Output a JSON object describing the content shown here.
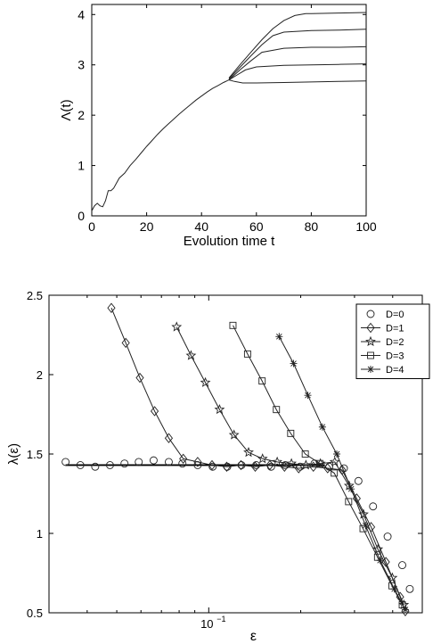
{
  "chart_data": [
    {
      "type": "line",
      "title": "",
      "xlabel": "Evolution time t",
      "ylabel": "Λ(t)",
      "xlim": [
        0,
        100
      ],
      "ylim": [
        0,
        4.2
      ],
      "xticks": [
        "0",
        "20",
        "40",
        "60",
        "80",
        "100"
      ],
      "yticks": [
        "0",
        "1",
        "2",
        "3",
        "4"
      ],
      "grid": false,
      "shared_x": [
        0,
        1,
        2,
        3,
        4,
        5,
        6,
        7,
        8,
        10,
        12,
        14,
        16,
        18,
        20,
        22,
        24,
        26,
        28,
        30,
        32,
        34,
        36,
        38,
        40,
        42,
        44,
        46,
        48,
        50
      ],
      "shared_y": [
        0.1,
        0.2,
        0.25,
        0.2,
        0.18,
        0.3,
        0.5,
        0.5,
        0.55,
        0.75,
        0.85,
        1.0,
        1.12,
        1.25,
        1.38,
        1.5,
        1.62,
        1.73,
        1.83,
        1.93,
        2.03,
        2.12,
        2.21,
        2.3,
        2.38,
        2.46,
        2.53,
        2.59,
        2.65,
        2.7
      ],
      "series": [
        {
          "x": [
            50,
            52,
            55,
            60,
            70,
            80,
            90,
            100
          ],
          "values": [
            2.7,
            2.67,
            2.64,
            2.64,
            2.65,
            2.66,
            2.67,
            2.68
          ]
        },
        {
          "x": [
            50,
            53,
            56,
            60,
            70,
            80,
            90,
            100
          ],
          "values": [
            2.7,
            2.8,
            2.9,
            2.96,
            2.99,
            3.0,
            3.01,
            3.02
          ]
        },
        {
          "x": [
            50,
            54,
            58,
            62,
            70,
            80,
            90,
            100
          ],
          "values": [
            2.7,
            2.9,
            3.08,
            3.25,
            3.33,
            3.35,
            3.35,
            3.36
          ]
        },
        {
          "x": [
            50,
            54,
            58,
            62,
            66,
            70,
            80,
            90,
            100
          ],
          "values": [
            2.72,
            2.95,
            3.18,
            3.4,
            3.58,
            3.65,
            3.68,
            3.69,
            3.71
          ]
        },
        {
          "x": [
            50,
            54,
            58,
            62,
            66,
            70,
            74,
            78,
            80,
            90,
            100
          ],
          "values": [
            2.74,
            3.0,
            3.25,
            3.5,
            3.72,
            3.88,
            3.98,
            4.02,
            4.02,
            4.03,
            4.04
          ]
        }
      ]
    },
    {
      "type": "scatter",
      "title": "",
      "xlabel": "ε",
      "ylabel": "λ(ε)",
      "xscale": "log",
      "xlim": [
        0.03,
        0.5
      ],
      "ylim": [
        0.5,
        2.5
      ],
      "xticks": [
        "10"
      ],
      "xtick_exponent": "−1",
      "yticks": [
        "0.5",
        "1",
        "1.5",
        "2",
        "2.5"
      ],
      "legend_position": "top-right",
      "grid": false,
      "plateau_line": {
        "x": [
          0.034,
          0.24
        ],
        "values": [
          1.43,
          1.43
        ]
      },
      "series": [
        {
          "name": "D=0",
          "marker": "circle",
          "connected": false,
          "x": [
            0.034,
            0.038,
            0.0425,
            0.0475,
            0.053,
            0.059,
            0.066,
            0.074,
            0.082,
            0.092,
            0.103,
            0.115,
            0.128,
            0.143,
            0.16,
            0.178,
            0.199,
            0.222,
            0.248,
            0.277,
            0.309,
            0.345,
            0.385,
            0.43,
            0.455
          ],
          "values": [
            1.45,
            1.43,
            1.42,
            1.43,
            1.44,
            1.45,
            1.46,
            1.45,
            1.44,
            1.43,
            1.42,
            1.42,
            1.43,
            1.43,
            1.42,
            1.43,
            1.42,
            1.44,
            1.42,
            1.41,
            1.33,
            1.17,
            0.98,
            0.8,
            0.65
          ]
        },
        {
          "name": "D=1",
          "marker": "diamond",
          "connected": true,
          "x": [
            0.048,
            0.0535,
            0.0595,
            0.0665,
            0.074,
            0.0825,
            0.092,
            0.1025,
            0.1145,
            0.1275,
            0.142,
            0.1585,
            0.177,
            0.197,
            0.22,
            0.245,
            0.273,
            0.305,
            0.34,
            0.38,
            0.423,
            0.44
          ],
          "values": [
            2.42,
            2.2,
            1.98,
            1.77,
            1.6,
            1.47,
            1.45,
            1.43,
            1.42,
            1.43,
            1.42,
            1.43,
            1.42,
            1.41,
            1.42,
            1.41,
            1.4,
            1.22,
            1.04,
            0.82,
            0.6,
            0.51
          ]
        },
        {
          "name": "D=2",
          "marker": "star",
          "connected": true,
          "x": [
            0.0785,
            0.0875,
            0.0975,
            0.1085,
            0.121,
            0.135,
            0.15,
            0.1675,
            0.1865,
            0.208,
            0.232,
            0.2585,
            0.288,
            0.321,
            0.358,
            0.399,
            0.435
          ],
          "values": [
            2.3,
            2.12,
            1.95,
            1.78,
            1.62,
            1.51,
            1.47,
            1.45,
            1.44,
            1.43,
            1.44,
            1.45,
            1.3,
            1.12,
            0.9,
            0.72,
            0.55
          ]
        },
        {
          "name": "D=3",
          "marker": "square",
          "connected": true,
          "x": [
            0.12,
            0.134,
            0.1495,
            0.1665,
            0.1855,
            0.207,
            0.231,
            0.2575,
            0.287,
            0.32,
            0.357,
            0.398,
            0.43
          ],
          "values": [
            2.31,
            2.13,
            1.96,
            1.78,
            1.63,
            1.5,
            1.44,
            1.38,
            1.2,
            1.03,
            0.85,
            0.67,
            0.55
          ]
        },
        {
          "name": "D=4",
          "marker": "asterisk",
          "connected": true,
          "x": [
            0.17,
            0.1895,
            0.211,
            0.2355,
            0.2625,
            0.2925,
            0.326,
            0.364,
            0.405,
            0.44
          ],
          "values": [
            2.24,
            2.07,
            1.87,
            1.67,
            1.5,
            1.28,
            1.05,
            0.83,
            0.65,
            0.52
          ]
        }
      ]
    }
  ]
}
